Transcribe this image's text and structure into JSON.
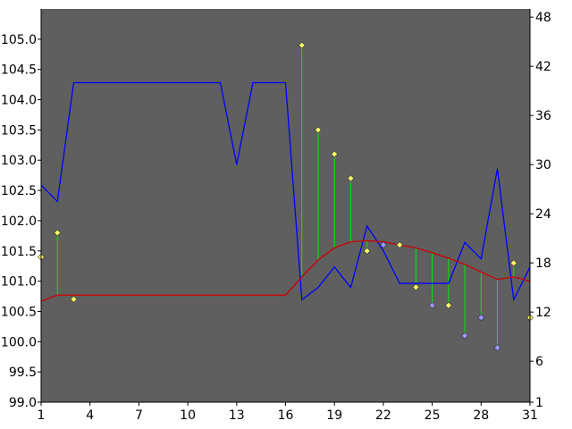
{
  "chart_data": {
    "type": "line",
    "x": [
      1,
      2,
      3,
      4,
      5,
      6,
      7,
      8,
      9,
      10,
      11,
      12,
      13,
      14,
      15,
      16,
      17,
      18,
      19,
      20,
      21,
      22,
      23,
      24,
      25,
      26,
      27,
      28,
      29,
      30,
      31
    ],
    "xlim": [
      1,
      31
    ],
    "x_ticks": [
      1,
      4,
      7,
      10,
      13,
      16,
      19,
      22,
      25,
      28,
      31
    ],
    "y_left_lim": [
      99.0,
      105.5
    ],
    "y_left_ticks": [
      "99.0",
      "99.5",
      "100.0",
      "100.5",
      "101.0",
      "101.5",
      "102.0",
      "102.5",
      "103.0",
      "103.5",
      "104.0",
      "104.5",
      "105.0"
    ],
    "y_right_lim": [
      1,
      49
    ],
    "y_right_ticks": [
      "1",
      "6",
      "12",
      "18",
      "24",
      "30",
      "36",
      "42",
      "48"
    ],
    "grid": false,
    "colors": {
      "plot_bg": "#5f5f5f",
      "blue_line": "#0000ff",
      "red_line": "#cc0000",
      "stems": "#00ee00",
      "marker_yellow": "#ffff66",
      "marker_blue": "#9999ff"
    },
    "series": [
      {
        "axis": "right",
        "style": "line",
        "values": [
          27.5,
          25.5,
          40,
          40,
          40,
          40,
          40,
          40,
          40,
          40,
          40,
          40,
          30,
          40,
          40,
          40,
          13.5,
          15,
          17.5,
          15,
          22.5,
          19.5,
          15.5,
          15.5,
          15.5,
          15.5,
          20.5,
          18.5,
          29.5,
          13.5,
          17.5
        ]
      },
      {
        "axis": "left",
        "style": "line",
        "values": [
          100.67,
          100.77,
          100.77,
          100.77,
          100.77,
          100.77,
          100.77,
          100.77,
          100.77,
          100.77,
          100.77,
          100.77,
          100.77,
          100.77,
          100.77,
          100.77,
          101.07,
          101.35,
          101.55,
          101.65,
          101.67,
          101.65,
          101.6,
          101.55,
          101.47,
          101.38,
          101.28,
          101.15,
          101.03,
          101.07,
          101.0
        ]
      },
      {
        "axis": "left",
        "style": "stem-markers",
        "values": [
          101.4,
          101.8,
          100.7,
          null,
          null,
          null,
          null,
          null,
          null,
          null,
          null,
          null,
          null,
          null,
          null,
          null,
          104.9,
          103.5,
          103.1,
          102.7,
          101.5,
          101.6,
          101.6,
          100.9,
          100.6,
          100.6,
          100.1,
          100.4,
          99.9,
          101.3,
          100.4
        ],
        "marker_colors": [
          "yellow",
          "yellow",
          "yellow",
          null,
          null,
          null,
          null,
          null,
          null,
          null,
          null,
          null,
          null,
          null,
          null,
          null,
          "yellow",
          "yellow",
          "yellow",
          "yellow",
          "yellow",
          "blue",
          "yellow",
          "yellow",
          "blue",
          "yellow",
          "blue",
          "blue",
          "blue",
          "yellow",
          "yellow"
        ]
      }
    ],
    "title": "",
    "xlabel": "",
    "ylabel": ""
  }
}
